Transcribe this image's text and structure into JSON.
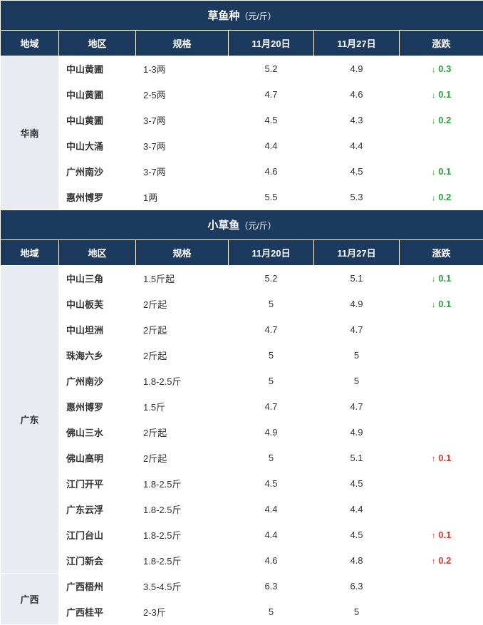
{
  "colors": {
    "header_bg": "#1c3a5e",
    "header_fg": "#ffffff",
    "region_bg": "#e8ecf2",
    "cell_bg": "#ffffff",
    "border": "#ffffff",
    "down": "#2e9f3f",
    "up": "#d93a2b"
  },
  "sections": [
    {
      "title": "草鱼种",
      "unit": "（元/斤）",
      "headers": [
        "地域",
        "地区",
        "规格",
        "11月20日",
        "11月27日",
        "涨跌"
      ],
      "groups": [
        {
          "region": "华南",
          "rows": [
            {
              "loc": "中山黄圃",
              "spec": "1-3两",
              "d1": "5.2",
              "d2": "4.9",
              "chg": "0.3",
              "dir": "down"
            },
            {
              "loc": "中山黄圃",
              "spec": "2-5两",
              "d1": "4.7",
              "d2": "4.6",
              "chg": "0.1",
              "dir": "down"
            },
            {
              "loc": "中山黄圃",
              "spec": "3-7两",
              "d1": "4.5",
              "d2": "4.3",
              "chg": "0.2",
              "dir": "down"
            },
            {
              "loc": "中山大涌",
              "spec": "3-7两",
              "d1": "4.4",
              "d2": "4.4",
              "chg": "",
              "dir": ""
            },
            {
              "loc": "广州南沙",
              "spec": "3-7两",
              "d1": "4.6",
              "d2": "4.5",
              "chg": "0.1",
              "dir": "down"
            },
            {
              "loc": "惠州博罗",
              "spec": "1两",
              "d1": "5.5",
              "d2": "5.3",
              "chg": "0.2",
              "dir": "down"
            }
          ]
        }
      ]
    },
    {
      "title": "小草鱼",
      "unit": "（元/斤）",
      "headers": [
        "地域",
        "地区",
        "规格",
        "11月20日",
        "11月27日",
        "涨跌"
      ],
      "groups": [
        {
          "region": "广东",
          "rows": [
            {
              "loc": "中山三角",
              "spec": "1.5斤起",
              "d1": "5.2",
              "d2": "5.1",
              "chg": "0.1",
              "dir": "down"
            },
            {
              "loc": "中山板芙",
              "spec": "2斤起",
              "d1": "5",
              "d2": "4.9",
              "chg": "0.1",
              "dir": "down"
            },
            {
              "loc": "中山坦洲",
              "spec": "2斤起",
              "d1": "4.7",
              "d2": "4.7",
              "chg": "",
              "dir": ""
            },
            {
              "loc": "珠海六乡",
              "spec": "2斤起",
              "d1": "5",
              "d2": "5",
              "chg": "",
              "dir": ""
            },
            {
              "loc": "广州南沙",
              "spec": "1.8-2.5斤",
              "d1": "5",
              "d2": "5",
              "chg": "",
              "dir": ""
            },
            {
              "loc": "惠州博罗",
              "spec": "1.5斤",
              "d1": "4.7",
              "d2": "4.7",
              "chg": "",
              "dir": ""
            },
            {
              "loc": "佛山三水",
              "spec": "2斤起",
              "d1": "4.9",
              "d2": "4.9",
              "chg": "",
              "dir": ""
            },
            {
              "loc": "佛山高明",
              "spec": "2斤起",
              "d1": "5",
              "d2": "5.1",
              "chg": "0.1",
              "dir": "up"
            },
            {
              "loc": "江门开平",
              "spec": "1.8-2.5斤",
              "d1": "4.5",
              "d2": "4.5",
              "chg": "",
              "dir": ""
            },
            {
              "loc": "广东云浮",
              "spec": "1.8-2.5斤",
              "d1": "4.4",
              "d2": "4.4",
              "chg": "",
              "dir": ""
            },
            {
              "loc": "江门台山",
              "spec": "1.8-2.5斤",
              "d1": "4.4",
              "d2": "4.5",
              "chg": "0.1",
              "dir": "up"
            },
            {
              "loc": "江门新会",
              "spec": "1.8-2.5斤",
              "d1": "4.6",
              "d2": "4.8",
              "chg": "0.2",
              "dir": "up"
            }
          ]
        },
        {
          "region": "广西",
          "rows": [
            {
              "loc": "广西梧州",
              "spec": "3.5-4.5斤",
              "d1": "6.3",
              "d2": "6.3",
              "chg": "",
              "dir": ""
            },
            {
              "loc": "广西桂平",
              "spec": "2-3斤",
              "d1": "5",
              "d2": "5",
              "chg": "",
              "dir": ""
            }
          ]
        }
      ]
    }
  ]
}
